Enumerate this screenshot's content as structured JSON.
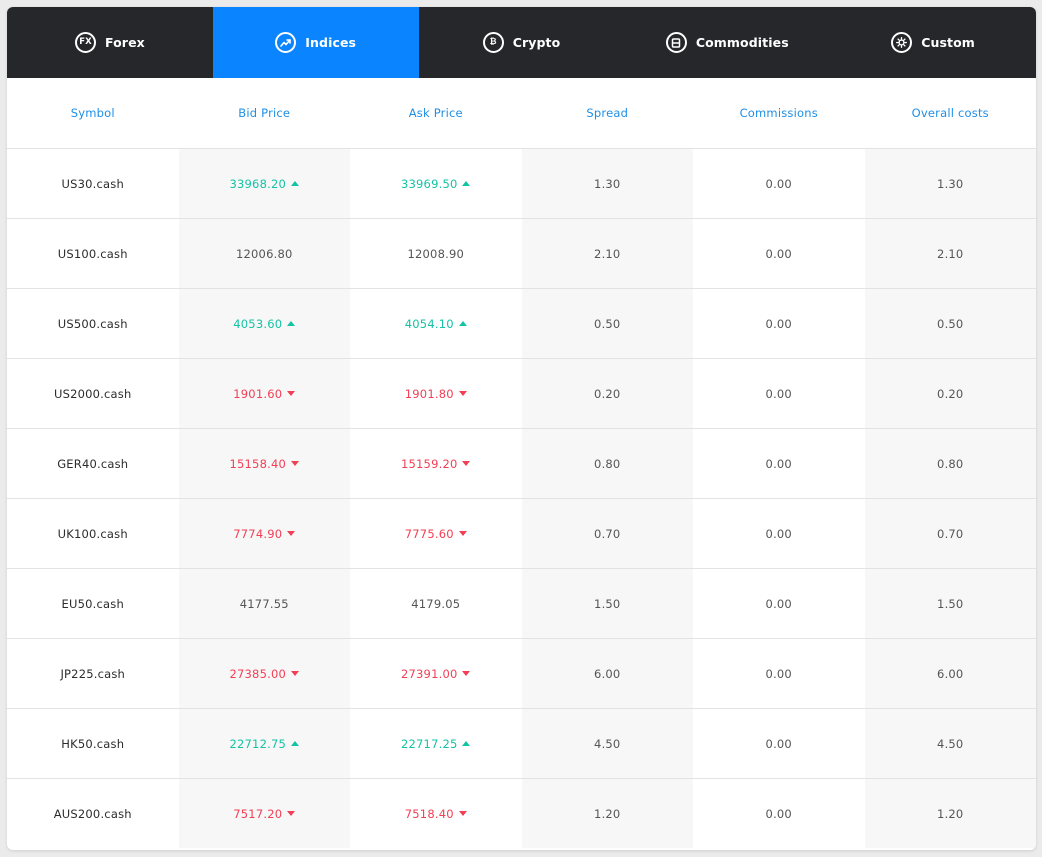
{
  "tabs": [
    {
      "label": "Forex",
      "icon": "fx-icon",
      "icon_text": "FX",
      "active": false
    },
    {
      "label": "Indices",
      "icon": "trending-up-icon",
      "icon_text": "",
      "active": true
    },
    {
      "label": "Crypto",
      "icon": "bitcoin-icon",
      "icon_text": "₿",
      "active": false
    },
    {
      "label": "Commodities",
      "icon": "commodities-icon",
      "icon_text": "",
      "active": false
    },
    {
      "label": "Custom",
      "icon": "gear-icon",
      "icon_text": "",
      "active": false
    }
  ],
  "table": {
    "headers": [
      "Symbol",
      "Bid Price",
      "Ask Price",
      "Spread",
      "Commissions",
      "Overall costs"
    ],
    "rows": [
      {
        "symbol": "US30.cash",
        "bid": "33968.20",
        "bid_dir": "up",
        "ask": "33969.50",
        "ask_dir": "up",
        "spread": "1.30",
        "commissions": "0.00",
        "overall": "1.30"
      },
      {
        "symbol": "US100.cash",
        "bid": "12006.80",
        "bid_dir": "flat",
        "ask": "12008.90",
        "ask_dir": "flat",
        "spread": "2.10",
        "commissions": "0.00",
        "overall": "2.10"
      },
      {
        "symbol": "US500.cash",
        "bid": "4053.60",
        "bid_dir": "up",
        "ask": "4054.10",
        "ask_dir": "up",
        "spread": "0.50",
        "commissions": "0.00",
        "overall": "0.50"
      },
      {
        "symbol": "US2000.cash",
        "bid": "1901.60",
        "bid_dir": "down",
        "ask": "1901.80",
        "ask_dir": "down",
        "spread": "0.20",
        "commissions": "0.00",
        "overall": "0.20"
      },
      {
        "symbol": "GER40.cash",
        "bid": "15158.40",
        "bid_dir": "down",
        "ask": "15159.20",
        "ask_dir": "down",
        "spread": "0.80",
        "commissions": "0.00",
        "overall": "0.80"
      },
      {
        "symbol": "UK100.cash",
        "bid": "7774.90",
        "bid_dir": "down",
        "ask": "7775.60",
        "ask_dir": "down",
        "spread": "0.70",
        "commissions": "0.00",
        "overall": "0.70"
      },
      {
        "symbol": "EU50.cash",
        "bid": "4177.55",
        "bid_dir": "flat",
        "ask": "4179.05",
        "ask_dir": "flat",
        "spread": "1.50",
        "commissions": "0.00",
        "overall": "1.50"
      },
      {
        "symbol": "JP225.cash",
        "bid": "27385.00",
        "bid_dir": "down",
        "ask": "27391.00",
        "ask_dir": "down",
        "spread": "6.00",
        "commissions": "0.00",
        "overall": "6.00"
      },
      {
        "symbol": "HK50.cash",
        "bid": "22712.75",
        "bid_dir": "up",
        "ask": "22717.25",
        "ask_dir": "up",
        "spread": "4.50",
        "commissions": "0.00",
        "overall": "4.50"
      },
      {
        "symbol": "AUS200.cash",
        "bid": "7517.20",
        "bid_dir": "down",
        "ask": "7518.40",
        "ask_dir": "down",
        "spread": "1.20",
        "commissions": "0.00",
        "overall": "1.20"
      }
    ]
  },
  "colors": {
    "tab_bar": "#25272a",
    "tab_active": "#0a84ff",
    "header_text": "#1e8fe6",
    "price_up": "#14c3a5",
    "price_down": "#f23f55",
    "shaded_column": "#f7f7f7"
  }
}
